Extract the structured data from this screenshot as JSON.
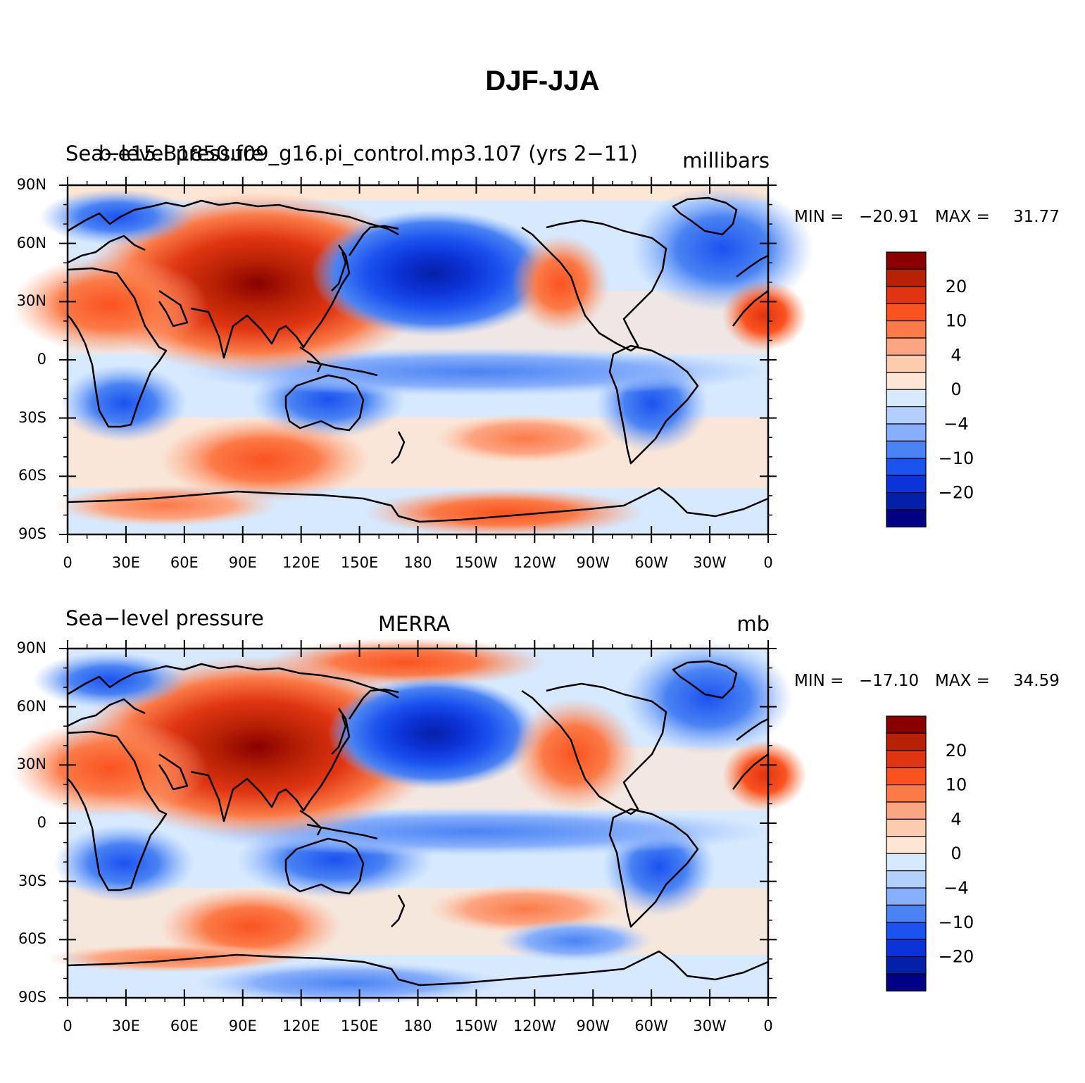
{
  "title": "DJF-JJA",
  "lat_labels": [
    "90N",
    "60N",
    "30N",
    "0",
    "30S",
    "60S",
    "90S"
  ],
  "lon_labels": [
    "0",
    "30E",
    "60E",
    "90E",
    "120E",
    "150E",
    "180",
    "150W",
    "120W",
    "90W",
    "60W",
    "30W",
    "0"
  ],
  "colorbar": {
    "colors": [
      "#8a0000",
      "#b82104",
      "#e03512",
      "#fa5320",
      "#fb7a47",
      "#fca582",
      "#fdcbad",
      "#fee6d4",
      "#d6e9fe",
      "#b3cffd",
      "#87affb",
      "#4a83f3",
      "#1b52f0",
      "#0c33d8",
      "#0520a8",
      "#020085"
    ],
    "labels": [
      "20",
      "10",
      "4",
      "0",
      "−4",
      "−10",
      "−20"
    ]
  },
  "panels": [
    {
      "left_title": "Sea−level pressure",
      "center_title": "b.e15.B1850.f09_g16.pi_control.mp3.107 (yrs 2−11)",
      "right_title": "millibars",
      "min_label": "MIN =",
      "min_value": "−20.91",
      "max_label": "MAX =",
      "max_value": "31.77"
    },
    {
      "left_title": "Sea−level pressure",
      "center_title": "MERRA",
      "right_title": "mb",
      "min_label": "MIN =",
      "min_value": "−17.10",
      "max_label": "MAX =",
      "max_value": "34.59"
    }
  ]
}
